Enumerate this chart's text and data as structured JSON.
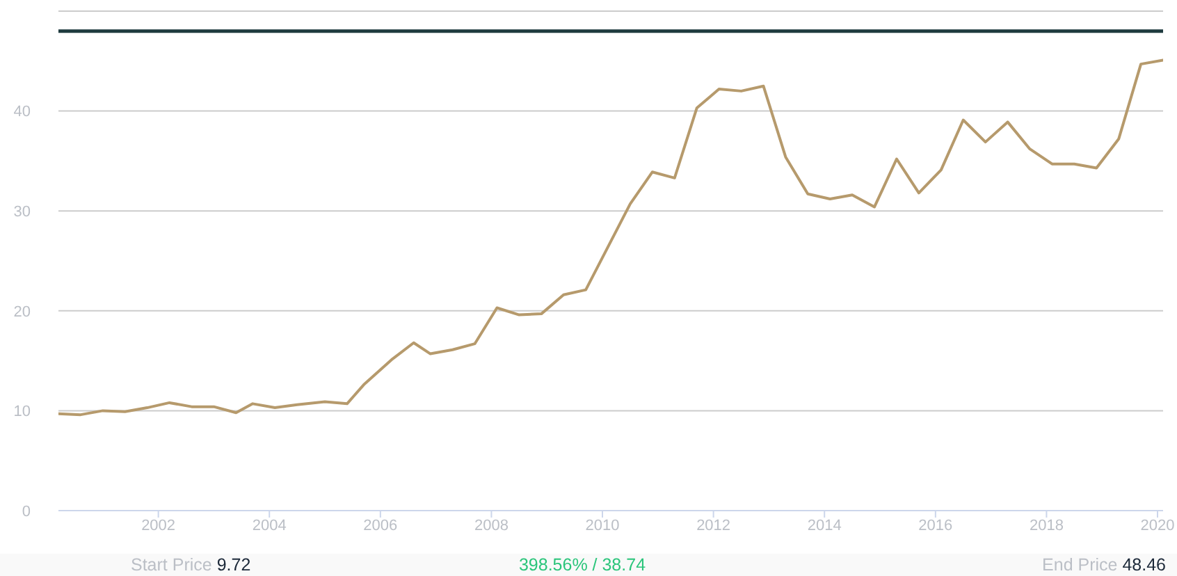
{
  "chart_data": {
    "type": "line",
    "x": [
      2000.2,
      2000.6,
      2001.0,
      2001.4,
      2001.8,
      2002.2,
      2002.6,
      2003.0,
      2003.4,
      2003.7,
      2004.1,
      2004.5,
      2005.0,
      2005.4,
      2005.7,
      2006.2,
      2006.6,
      2006.9,
      2007.3,
      2007.7,
      2008.1,
      2008.5,
      2008.9,
      2009.3,
      2009.7,
      2010.1,
      2010.5,
      2010.9,
      2011.3,
      2011.7,
      2012.1,
      2012.5,
      2012.9,
      2013.3,
      2013.7,
      2014.1,
      2014.5,
      2014.9,
      2015.3,
      2015.7,
      2016.1,
      2016.5,
      2016.9,
      2017.3,
      2017.7,
      2018.1,
      2018.5,
      2018.9,
      2019.3,
      2019.7,
      2020.1
    ],
    "series": [
      {
        "color": "#b69a6c",
        "values": [
          9.7,
          9.6,
          10.0,
          9.9,
          10.3,
          10.8,
          10.4,
          10.4,
          9.8,
          10.7,
          10.3,
          10.6,
          10.9,
          10.7,
          12.6,
          15.1,
          16.8,
          15.7,
          16.1,
          16.7,
          20.3,
          19.6,
          19.7,
          21.6,
          22.1,
          26.4,
          30.7,
          33.9,
          33.3,
          40.3,
          42.2,
          42.0,
          42.5,
          35.4,
          31.7,
          31.2,
          31.6,
          30.4,
          35.2,
          31.8,
          34.1,
          39.1,
          36.9,
          38.9,
          36.2,
          34.7,
          34.7,
          34.3,
          37.2,
          44.7,
          45.1
        ]
      }
    ],
    "xlim": [
      2000.2,
      2020.1
    ],
    "xticks": [
      2002,
      2004,
      2006,
      2008,
      2010,
      2012,
      2014,
      2016,
      2018,
      2020
    ],
    "ylim": [
      0,
      50
    ],
    "yticks": [
      0,
      10,
      20,
      30,
      40,
      {
        "value": 50,
        "label": null
      }
    ],
    "grid": "y",
    "marker": "none",
    "line_style": "solid",
    "ref_lines": [
      {
        "axis": "y",
        "value": 48,
        "color": "#1f3b3f"
      }
    ],
    "annotations": [
      "Start Price 9.72",
      "398.56% / 38.74",
      "End Price 48.46"
    ]
  }
}
